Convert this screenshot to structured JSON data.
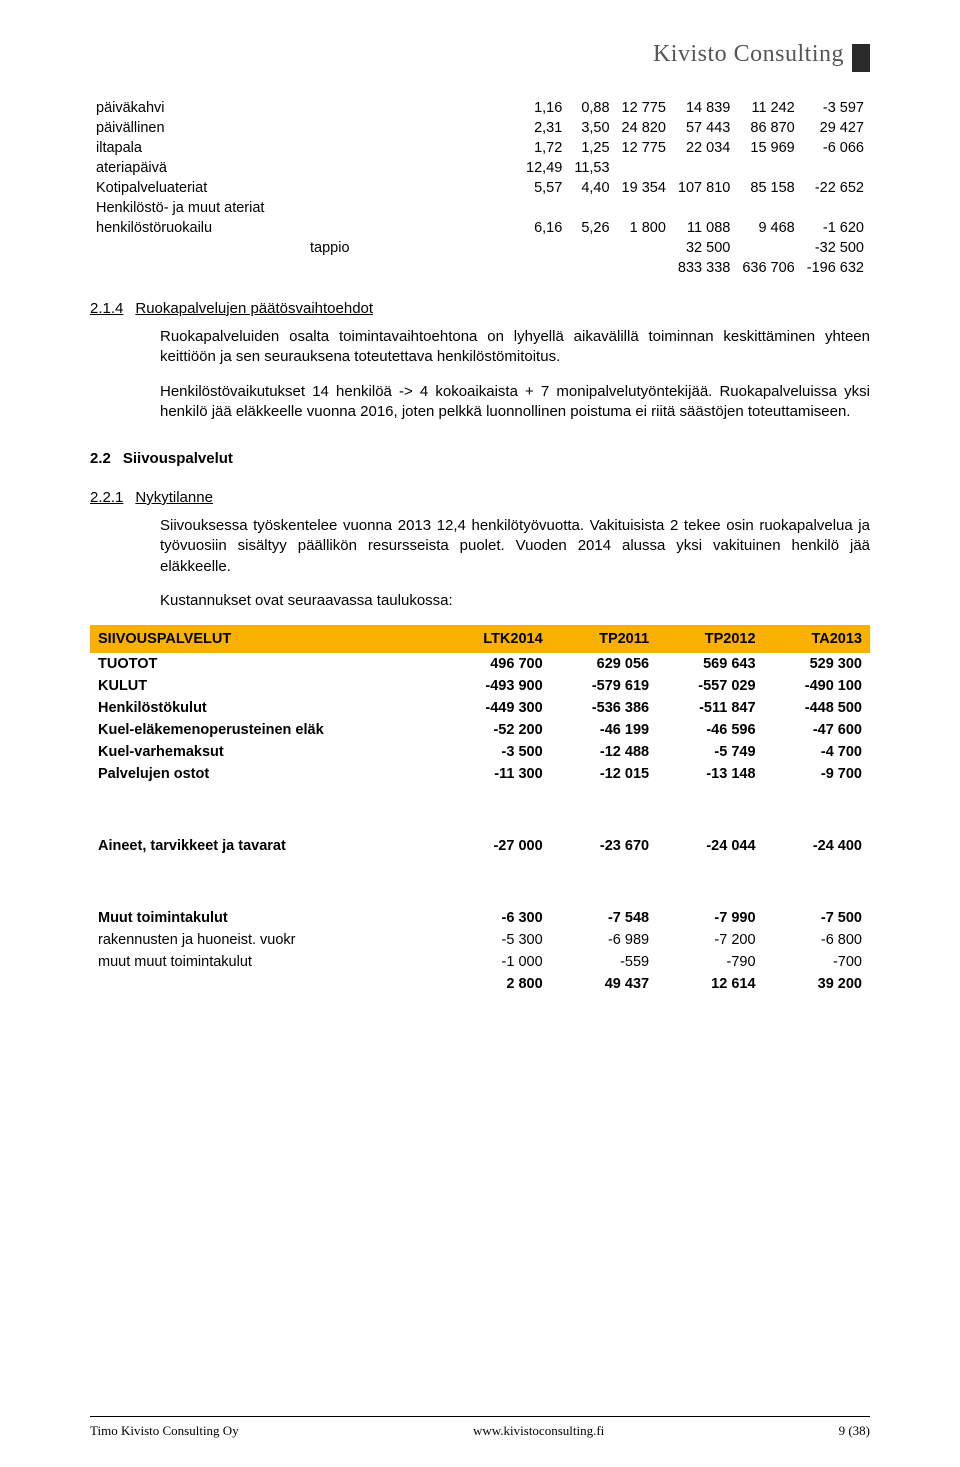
{
  "logo_text": "Kivisto Consulting",
  "top_table": {
    "rows": [
      {
        "label": "päiväkahvi",
        "c": [
          "1,16",
          "0,88",
          "12 775",
          "14 839",
          "11 242",
          "-3 597"
        ]
      },
      {
        "label": "päivällinen",
        "c": [
          "2,31",
          "3,50",
          "24 820",
          "57 443",
          "86 870",
          "29 427"
        ]
      },
      {
        "label": "iltapala",
        "c": [
          "1,72",
          "1,25",
          "12 775",
          "22 034",
          "15 969",
          "-6 066"
        ]
      },
      {
        "label": "ateriapäivä",
        "c": [
          "12,49",
          "11,53",
          "",
          "",
          "",
          ""
        ]
      },
      {
        "label": "Kotipalveluateriat",
        "c": [
          "5,57",
          "4,40",
          "19 354",
          "107 810",
          "85 158",
          "-22 652"
        ]
      },
      {
        "label": "Henkilöstö- ja muut ateriat",
        "c": [
          "",
          "",
          "",
          "",
          "",
          ""
        ]
      },
      {
        "label": "henkilöstöruokailu",
        "c": [
          "6,16",
          "5,26",
          "1 800",
          "11 088",
          "9 468",
          "-1 620"
        ]
      },
      {
        "label": "tappio",
        "c": [
          "",
          "",
          "",
          "32 500",
          "",
          "-32 500"
        ],
        "indent": true
      },
      {
        "label": "",
        "c": [
          "",
          "",
          "",
          "833 338",
          "636 706",
          "-196 632"
        ]
      }
    ]
  },
  "sec214": {
    "num": "2.1.4",
    "title": "Ruokapalvelujen päätösvaihtoehdot",
    "p1": "Ruokapalveluiden osalta toimintavaihtoehtona on lyhyellä aikavälillä toiminnan keskittäminen yhteen keittiöön ja sen seurauksena toteutettava henkilöstömitoitus.",
    "p2": "Henkilöstövaikutukset 14 henkilöä -> 4 kokoaikaista + 7 monipalvelutyöntekijää. Ruokapalveluissa yksi henkilö jää eläkkeelle vuonna 2016, joten pelkkä luonnollinen poistuma ei riitä säästöjen toteuttamiseen."
  },
  "sec22": {
    "num": "2.2",
    "title": "Siivouspalvelut"
  },
  "sec221": {
    "num": "2.2.1",
    "title": "Nykytilanne",
    "p1": "Siivouksessa työskentelee vuonna 2013 12,4 henkilötyövuotta. Vakituisista 2 tekee osin ruokapalvelua ja työvuosiin sisältyy päällikön resursseista puolet. Vuoden 2014 alussa yksi vakituinen henkilö jää eläkkeelle.",
    "p2": "Kustannukset ovat seuraavassa taulukossa:"
  },
  "fin_table": {
    "title": "SIIVOUSPALVELUT",
    "cols": [
      "LTK2014",
      "TP2011",
      "TP2012",
      "TA2013"
    ],
    "rows": [
      {
        "label": "TUOTOT",
        "bold": true,
        "c": [
          "496 700",
          "629 056",
          "569 643",
          "529 300"
        ]
      },
      {
        "label": "KULUT",
        "bold": true,
        "c": [
          "-493 900",
          "-579 619",
          "-557 029",
          "-490 100"
        ]
      },
      {
        "label": "Henkilöstökulut",
        "bold": true,
        "c": [
          "-449 300",
          "-536 386",
          "-511 847",
          "-448 500"
        ]
      },
      {
        "label": "Kuel-eläkemenoperusteinen eläk",
        "bold": true,
        "c": [
          "-52 200",
          "-46 199",
          "-46 596",
          "-47 600"
        ]
      },
      {
        "label": "Kuel-varhemaksut",
        "bold": true,
        "c": [
          "-3 500",
          "-12 488",
          "-5 749",
          "-4 700"
        ]
      },
      {
        "label": "Palvelujen ostot",
        "bold": true,
        "c": [
          "-11 300",
          "-12 015",
          "-13 148",
          "-9 700"
        ]
      }
    ],
    "rows2": [
      {
        "label": "Aineet, tarvikkeet ja tavarat",
        "bold": true,
        "c": [
          "-27 000",
          "-23 670",
          "-24 044",
          "-24 400"
        ]
      }
    ],
    "rows3": [
      {
        "label": "Muut toimintakulut",
        "bold": true,
        "c": [
          "-6 300",
          "-7 548",
          "-7 990",
          "-7 500"
        ]
      },
      {
        "label": "rakennusten ja huoneist. vuokr",
        "bold": false,
        "c": [
          "-5 300",
          "-6 989",
          "-7 200",
          "-6 800"
        ]
      },
      {
        "label": "muut muut toimintakulut",
        "bold": false,
        "c": [
          "-1 000",
          "-559",
          "-790",
          "-700"
        ]
      },
      {
        "label": "",
        "bold": true,
        "c": [
          "2 800",
          "49 437",
          "12 614",
          "39 200"
        ]
      }
    ]
  },
  "footer": {
    "left": "Timo Kivisto Consulting Oy",
    "center": "www.kivistoconsulting.fi",
    "right": "9 (38)"
  }
}
